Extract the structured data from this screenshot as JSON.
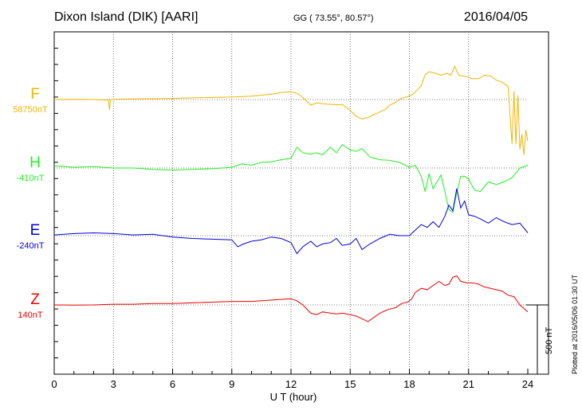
{
  "header": {
    "station": "Dixon Island (DIK)  [AARI]",
    "coords": "GG ( 73.55°,  80.57°)",
    "date": "2016/04/05"
  },
  "footer": {
    "plotted_note": "Plotted at 2016/05/06 01:30 UT",
    "scale_label": "500 nT"
  },
  "chart_data": {
    "type": "line",
    "xlabel": "U T (hour)",
    "xlim": [
      0,
      24
    ],
    "x_ticks": [
      "0",
      "3",
      "6",
      "9",
      "12",
      "15",
      "18",
      "21",
      "24"
    ],
    "scale_bar_nT": 500,
    "grid": true,
    "series": [
      {
        "name": "F",
        "baseline": "58750nT",
        "color": "#f4b400",
        "x": [
          0,
          1,
          2,
          2.75,
          2.8,
          2.85,
          3,
          4,
          5,
          6,
          7,
          8,
          9,
          10,
          11,
          11.5,
          12,
          12.3,
          12.6,
          13,
          13.3,
          13.6,
          14,
          14.3,
          14.6,
          15,
          15.3,
          15.6,
          15.9,
          16.2,
          16.5,
          16.8,
          17,
          17.3,
          17.6,
          17.9,
          18.2,
          18.4,
          18.6,
          18.8,
          19,
          19.3,
          19.6,
          19.9,
          20.1,
          20.3,
          20.5,
          20.7,
          20.9,
          21.2,
          21.5,
          21.8,
          22.1,
          22.4,
          22.7,
          23,
          23.2,
          23.3,
          23.4,
          23.5,
          23.6,
          23.7,
          23.8,
          23.9,
          24
        ],
        "y": [
          0,
          2,
          0,
          -4,
          -75,
          -4,
          2,
          4,
          6,
          8,
          12,
          15,
          18,
          24,
          38,
          50,
          55,
          45,
          15,
          -40,
          -25,
          -30,
          -35,
          -38,
          -35,
          -80,
          -120,
          -140,
          -130,
          -110,
          -90,
          -70,
          -40,
          -20,
          10,
          20,
          40,
          70,
          100,
          180,
          200,
          190,
          175,
          190,
          175,
          240,
          175,
          170,
          165,
          150,
          150,
          175,
          170,
          140,
          125,
          95,
          -320,
          60,
          -320,
          30,
          -360,
          -250,
          -400,
          -220,
          -300
        ]
      },
      {
        "name": "H",
        "baseline": "-410nT",
        "color": "#22ee22",
        "x": [
          0,
          1,
          2,
          3,
          4,
          5,
          6,
          7,
          8,
          9,
          9.5,
          10,
          10.5,
          11,
          11.5,
          12,
          12.3,
          12.6,
          13,
          13.3,
          13.6,
          14,
          14.3,
          14.6,
          15,
          15.3,
          15.6,
          16,
          16.5,
          17,
          17.5,
          18,
          18.3,
          18.6,
          18.8,
          19,
          19.2,
          19.4,
          19.6,
          19.8,
          20,
          20.2,
          20.4,
          20.6,
          20.8,
          21,
          21.3,
          21.6,
          22,
          22.4,
          22.8,
          23.2,
          23.6,
          24
        ],
        "y": [
          15,
          5,
          10,
          0,
          0,
          -10,
          -15,
          -10,
          -5,
          5,
          30,
          20,
          40,
          45,
          60,
          70,
          150,
          110,
          100,
          110,
          95,
          150,
          110,
          170,
          130,
          120,
          140,
          80,
          60,
          55,
          40,
          5,
          20,
          -60,
          -170,
          -40,
          -150,
          -100,
          -50,
          -170,
          -300,
          -320,
          -180,
          -60,
          -60,
          -80,
          -160,
          -170,
          -100,
          -120,
          -100,
          -70,
          0,
          20
        ]
      },
      {
        "name": "E",
        "baseline": "-240nT",
        "color": "#0000dd",
        "x": [
          0,
          1,
          2,
          3,
          4,
          5,
          6,
          7,
          8,
          9,
          9.3,
          9.6,
          10,
          10.5,
          11,
          11.5,
          12,
          12.3,
          12.6,
          13,
          13.3,
          13.6,
          14,
          14.3,
          14.6,
          15,
          15.3,
          15.6,
          16,
          16.5,
          17,
          17.5,
          18,
          18.3,
          18.6,
          18.9,
          19.2,
          19.5,
          19.8,
          20,
          20.2,
          20.4,
          20.6,
          20.8,
          21,
          21.3,
          21.6,
          22,
          22.4,
          22.8,
          23.2,
          23.6,
          24
        ],
        "y": [
          5,
          15,
          20,
          15,
          5,
          10,
          -10,
          -20,
          -25,
          -30,
          -80,
          -60,
          -40,
          -30,
          -10,
          -20,
          -50,
          -130,
          -80,
          -40,
          -80,
          -60,
          -50,
          -20,
          -70,
          -60,
          -20,
          -100,
          -60,
          -20,
          10,
          0,
          0,
          40,
          80,
          60,
          100,
          60,
          140,
          220,
          180,
          340,
          200,
          250,
          150,
          140,
          120,
          90,
          130,
          100,
          80,
          90,
          20
        ]
      },
      {
        "name": "Z",
        "baseline": "140nT",
        "color": "#ee0000",
        "x": [
          0,
          1,
          2,
          3,
          4,
          5,
          6,
          7,
          8,
          9,
          10,
          11,
          12,
          12.3,
          12.6,
          13,
          13.3,
          13.6,
          14,
          14.3,
          14.6,
          15,
          15.3,
          15.6,
          15.9,
          16.2,
          16.5,
          16.8,
          17,
          17.3,
          17.6,
          17.9,
          18.1,
          18.3,
          18.6,
          18.9,
          19.2,
          19.5,
          19.8,
          20,
          20.2,
          20.4,
          20.6,
          20.9,
          21.2,
          21.5,
          21.8,
          22.1,
          22.4,
          22.7,
          23,
          23.3,
          23.6,
          24
        ],
        "y": [
          0,
          -2,
          0,
          5,
          5,
          10,
          10,
          15,
          20,
          25,
          25,
          35,
          45,
          30,
          0,
          -60,
          -70,
          -50,
          -60,
          -65,
          -60,
          -70,
          -80,
          -100,
          -120,
          -90,
          -60,
          -40,
          -30,
          -20,
          10,
          20,
          40,
          90,
          120,
          110,
          140,
          170,
          140,
          150,
          200,
          210,
          170,
          160,
          160,
          150,
          130,
          120,
          110,
          100,
          70,
          60,
          0,
          -50
        ]
      }
    ]
  }
}
